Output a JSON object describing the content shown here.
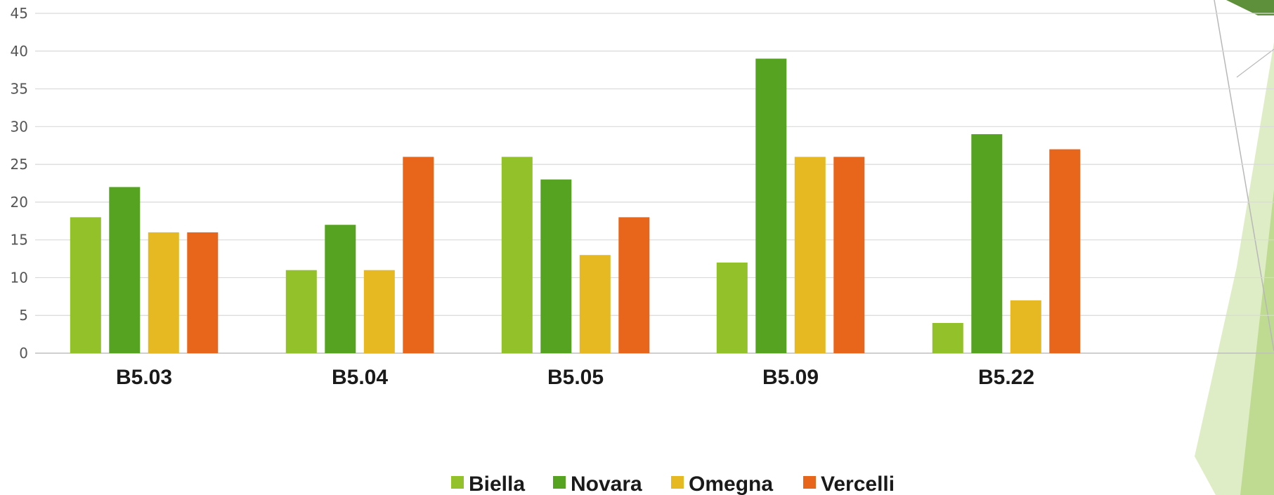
{
  "chart_data": {
    "type": "bar",
    "categories": [
      "B5.03",
      "B5.04",
      "B5.05",
      "B5.09",
      "B5.22"
    ],
    "series": [
      {
        "name": "Biella",
        "color": "#92c12a",
        "values": [
          18,
          11,
          26,
          12,
          4
        ]
      },
      {
        "name": "Novara",
        "color": "#56a321",
        "values": [
          22,
          17,
          23,
          39,
          29
        ]
      },
      {
        "name": "Omegna",
        "color": "#e6b922",
        "values": [
          16,
          11,
          13,
          26,
          7
        ]
      },
      {
        "name": "Vercelli",
        "color": "#e8661b",
        "values": [
          16,
          26,
          18,
          26,
          27
        ]
      }
    ],
    "ylim": [
      0,
      45
    ],
    "yticks": [
      0,
      5,
      10,
      15,
      20,
      25,
      30,
      35,
      40,
      45
    ],
    "grid": true,
    "legend_position": "bottom-center"
  },
  "decoration": {
    "light_green": "#d7e8b8",
    "mid_green": "#a9cf6e",
    "dark_green": "#5e8f3a",
    "line_gray": "#b8b8b8"
  }
}
